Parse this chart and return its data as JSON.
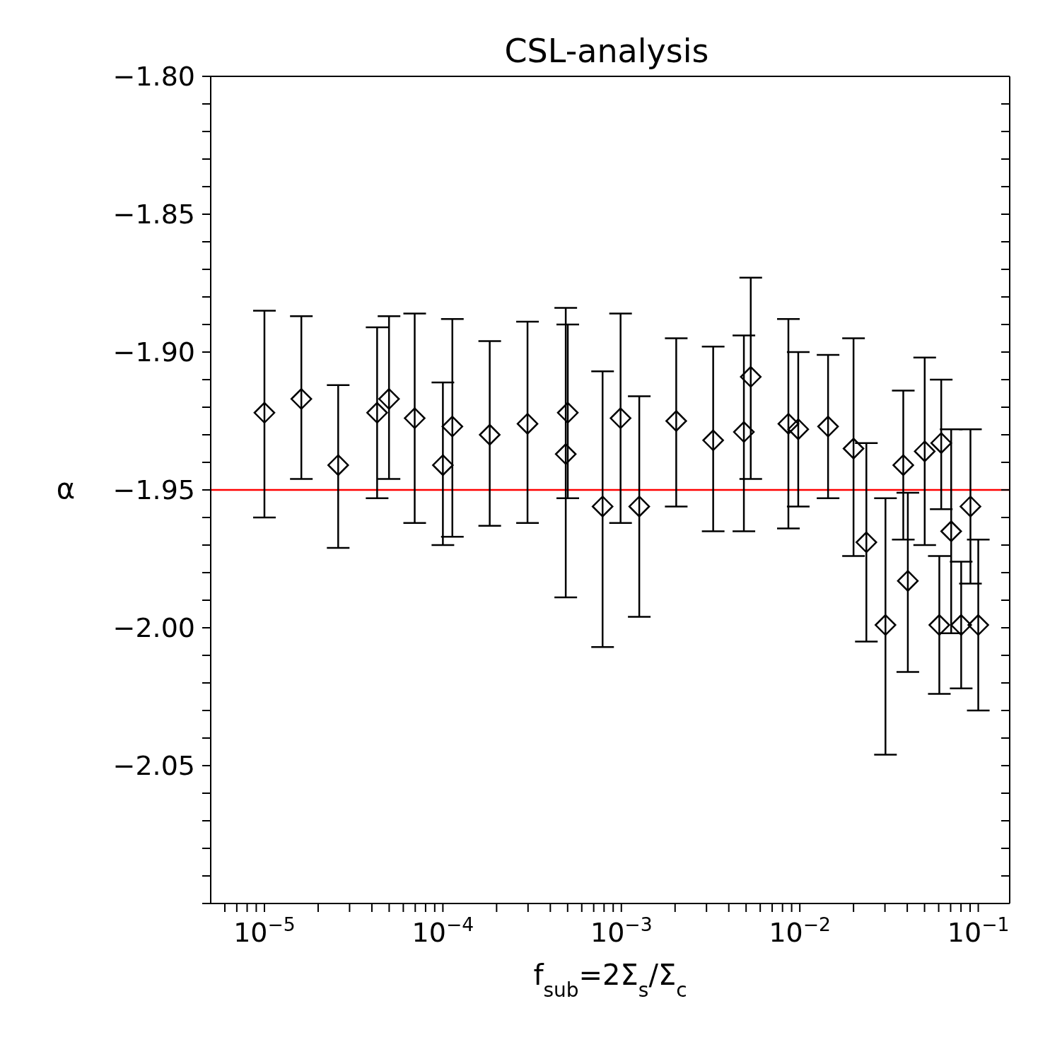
{
  "chart_data": {
    "type": "scatter",
    "title": "CSL-analysis",
    "xlabel": "f$_{sub}$=2Σ$_{s}$/Σ$_{c}$",
    "ylabel": "α",
    "log": "x",
    "marker": "diamond",
    "xlim": [
      5e-06,
      0.15
    ],
    "xticks": [
      {
        "value": 6e-06,
        "label": null
      },
      {
        "value": 7e-06,
        "label": null
      },
      {
        "value": 8e-06,
        "label": null
      },
      {
        "value": 9e-06,
        "label": null
      },
      {
        "value": 1e-05,
        "label": "10$^{−5}$"
      },
      {
        "value": 2e-05,
        "label": null
      },
      {
        "value": 3e-05,
        "label": null
      },
      {
        "value": 4e-05,
        "label": null
      },
      {
        "value": 5e-05,
        "label": null
      },
      {
        "value": 6e-05,
        "label": null
      },
      {
        "value": 7e-05,
        "label": null
      },
      {
        "value": 8e-05,
        "label": null
      },
      {
        "value": 9e-05,
        "label": null
      },
      {
        "value": 0.0001,
        "label": "10$^{−4}$"
      },
      {
        "value": 0.0002,
        "label": null
      },
      {
        "value": 0.0003,
        "label": null
      },
      {
        "value": 0.0004,
        "label": null
      },
      {
        "value": 0.0005,
        "label": null
      },
      {
        "value": 0.0006,
        "label": null
      },
      {
        "value": 0.0007,
        "label": null
      },
      {
        "value": 0.0008,
        "label": null
      },
      {
        "value": 0.0009,
        "label": null
      },
      {
        "value": 0.001,
        "label": "10$^{−3}$"
      },
      {
        "value": 0.002,
        "label": null
      },
      {
        "value": 0.003,
        "label": null
      },
      {
        "value": 0.004,
        "label": null
      },
      {
        "value": 0.005,
        "label": null
      },
      {
        "value": 0.006,
        "label": null
      },
      {
        "value": 0.007,
        "label": null
      },
      {
        "value": 0.008,
        "label": null
      },
      {
        "value": 0.009,
        "label": null
      },
      {
        "value": 0.01,
        "label": "10$^{−2}$"
      },
      {
        "value": 0.02,
        "label": null
      },
      {
        "value": 0.03,
        "label": null
      },
      {
        "value": 0.04,
        "label": null
      },
      {
        "value": 0.05,
        "label": null
      },
      {
        "value": 0.06,
        "label": null
      },
      {
        "value": 0.07,
        "label": null
      },
      {
        "value": 0.08,
        "label": null
      },
      {
        "value": 0.09,
        "label": null
      },
      {
        "value": 0.1,
        "label": "10$^{−1}$"
      }
    ],
    "ylim": [
      -2.1,
      -1.8
    ],
    "yticks": [
      {
        "value": -2.1,
        "label": null
      },
      {
        "value": -2.09,
        "label": null
      },
      {
        "value": -2.08,
        "label": null
      },
      {
        "value": -2.07,
        "label": null
      },
      {
        "value": -2.06,
        "label": null
      },
      {
        "value": -2.05,
        "label": "−2.05"
      },
      {
        "value": -2.04,
        "label": null
      },
      {
        "value": -2.03,
        "label": null
      },
      {
        "value": -2.02,
        "label": null
      },
      {
        "value": -2.01,
        "label": null
      },
      {
        "value": -2.0,
        "label": "−2.00"
      },
      {
        "value": -1.99,
        "label": null
      },
      {
        "value": -1.98,
        "label": null
      },
      {
        "value": -1.97,
        "label": null
      },
      {
        "value": -1.96,
        "label": null
      },
      {
        "value": -1.95,
        "label": "−1.95"
      },
      {
        "value": -1.94,
        "label": null
      },
      {
        "value": -1.93,
        "label": null
      },
      {
        "value": -1.92,
        "label": null
      },
      {
        "value": -1.91,
        "label": null
      },
      {
        "value": -1.9,
        "label": "−1.90"
      },
      {
        "value": -1.89,
        "label": null
      },
      {
        "value": -1.88,
        "label": null
      },
      {
        "value": -1.87,
        "label": null
      },
      {
        "value": -1.86,
        "label": null
      },
      {
        "value": -1.85,
        "label": "−1.85"
      },
      {
        "value": -1.84,
        "label": null
      },
      {
        "value": -1.83,
        "label": null
      },
      {
        "value": -1.82,
        "label": null
      },
      {
        "value": -1.81,
        "label": null
      },
      {
        "value": -1.8,
        "label": "−1.80"
      }
    ],
    "ref_lines": [
      {
        "axis": "y",
        "value": -1.95,
        "color": "#ff0000"
      }
    ],
    "series": [
      {
        "color": "#000000",
        "x": [
          1e-05,
          1.61e-05,
          2.59e-05,
          4.28e-05,
          4.99e-05,
          6.95e-05,
          0.0001,
          0.000113,
          0.000183,
          0.000298,
          0.000488,
          0.000501,
          0.000785,
          0.00099,
          0.00126,
          0.00203,
          0.00327,
          0.00486,
          0.00531,
          0.00863,
          0.0098,
          0.0144,
          0.02,
          0.0236,
          0.0302,
          0.038,
          0.0403,
          0.0501,
          0.0605,
          0.062,
          0.0705,
          0.0802,
          0.0904,
          0.1
        ],
        "values": [
          -1.922,
          -1.917,
          -1.941,
          -1.922,
          -1.917,
          -1.924,
          -1.941,
          -1.927,
          -1.93,
          -1.926,
          -1.937,
          -1.922,
          -1.956,
          -1.924,
          -1.956,
          -1.925,
          -1.932,
          -1.929,
          -1.909,
          -1.926,
          -1.928,
          -1.927,
          -1.935,
          -1.969,
          -1.999,
          -1.941,
          -1.983,
          -1.936,
          -1.999,
          -1.933,
          -1.965,
          -1.999,
          -1.956,
          -1.999
        ],
        "errors": [
          [
            -1.96,
            -1.885
          ],
          [
            -1.946,
            -1.887
          ],
          [
            -1.971,
            -1.912
          ],
          [
            -1.953,
            -1.891
          ],
          [
            -1.946,
            -1.887
          ],
          [
            -1.962,
            -1.886
          ],
          [
            -1.97,
            -1.911
          ],
          [
            -1.967,
            -1.888
          ],
          [
            -1.963,
            -1.896
          ],
          [
            -1.962,
            -1.889
          ],
          [
            -1.989,
            -1.884
          ],
          [
            -1.953,
            -1.89
          ],
          [
            -2.007,
            -1.907
          ],
          [
            -1.962,
            -1.886
          ],
          [
            -1.996,
            -1.916
          ],
          [
            -1.956,
            -1.895
          ],
          [
            -1.965,
            -1.898
          ],
          [
            -1.965,
            -1.894
          ],
          [
            -1.946,
            -1.873
          ],
          [
            -1.964,
            -1.888
          ],
          [
            -1.956,
            -1.9
          ],
          [
            -1.953,
            -1.901
          ],
          [
            -1.974,
            -1.895
          ],
          [
            -2.005,
            -1.933
          ],
          [
            -2.046,
            -1.953
          ],
          [
            -1.968,
            -1.914
          ],
          [
            -2.016,
            -1.951
          ],
          [
            -1.97,
            -1.902
          ],
          [
            -2.024,
            -1.974
          ],
          [
            -1.957,
            -1.91
          ],
          [
            -2.002,
            -1.928
          ],
          [
            -2.022,
            -1.976
          ],
          [
            -1.984,
            -1.928
          ],
          [
            -2.03,
            -1.968
          ]
        ]
      }
    ]
  }
}
